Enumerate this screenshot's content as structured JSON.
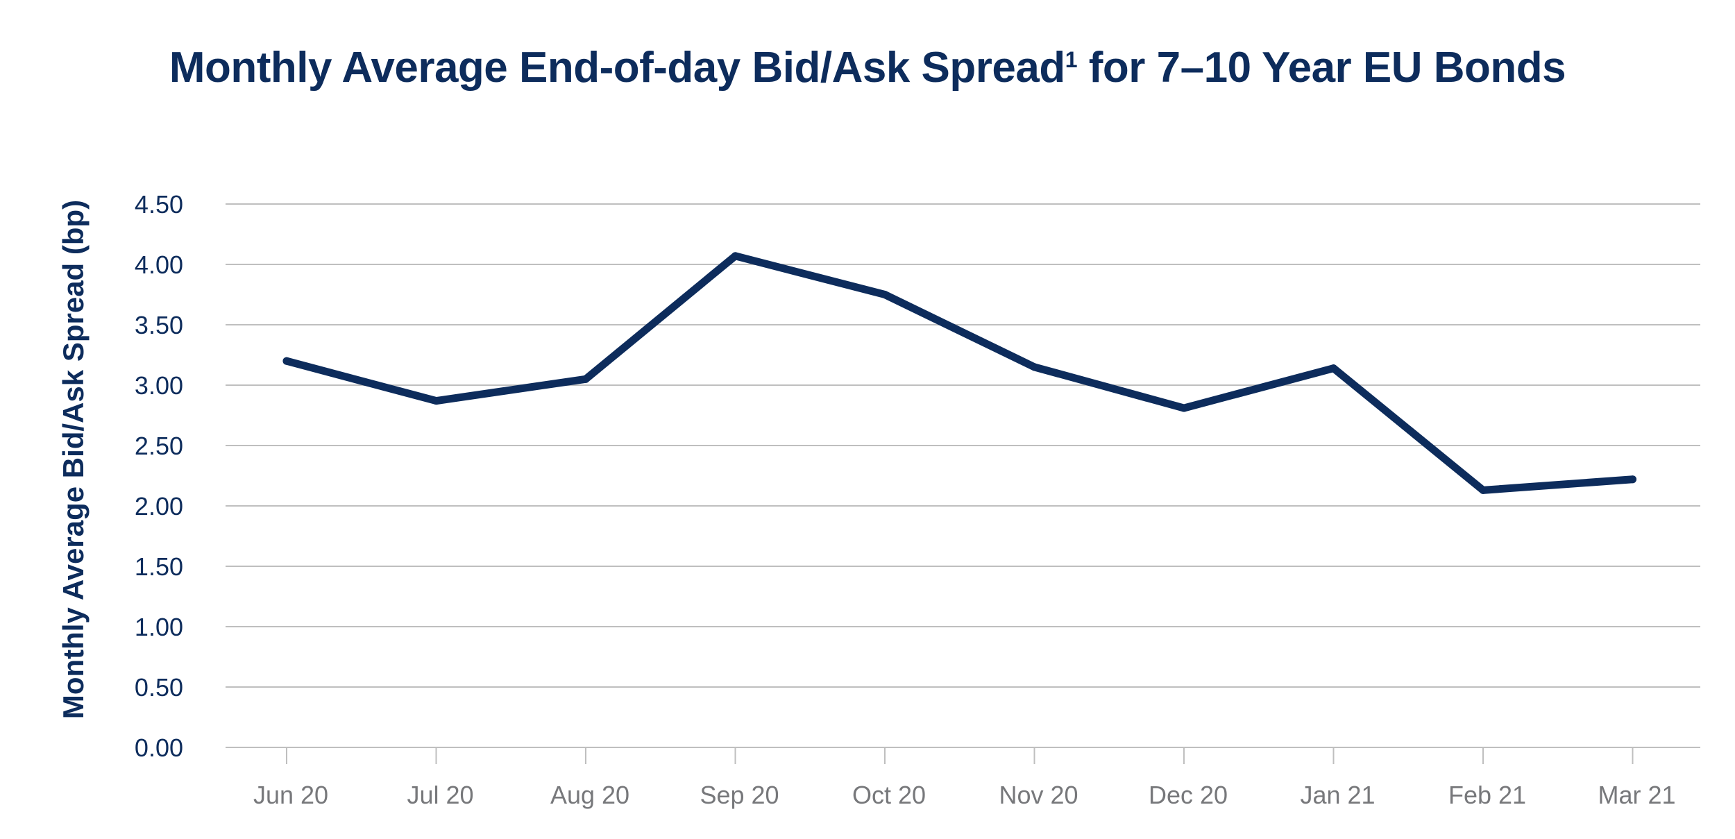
{
  "chart_data": {
    "type": "line",
    "title": "Monthly Average End-of-day Bid/Ask Spread",
    "title_superscript": "1",
    "title_suffix": " for 7–10 Year EU Bonds",
    "xlabel": "",
    "ylabel": "Monthly Average Bid/Ask Spread (bp)",
    "categories": [
      "Jun 20",
      "Jul 20",
      "Aug 20",
      "Sep 20",
      "Oct 20",
      "Nov 20",
      "Dec 20",
      "Jan 21",
      "Feb 21",
      "Mar 21"
    ],
    "series": [
      {
        "values": [
          3.2,
          2.87,
          3.05,
          4.07,
          3.75,
          3.15,
          2.81,
          3.14,
          2.13,
          2.22
        ],
        "color": "#0d2c5c"
      }
    ],
    "ylim": [
      0,
      4.5
    ],
    "yticks": [
      "0.00",
      "0.50",
      "1.00",
      "1.50",
      "2.00",
      "2.50",
      "3.00",
      "3.50",
      "4.00",
      "4.50"
    ],
    "grid": true,
    "legend": "none",
    "colors": {
      "title": "#0d2c5c",
      "line": "#0d2c5c",
      "grid": "#bfbfbf",
      "ytick_text": "#0d2c5c",
      "xtick_text": "#77787b"
    }
  }
}
